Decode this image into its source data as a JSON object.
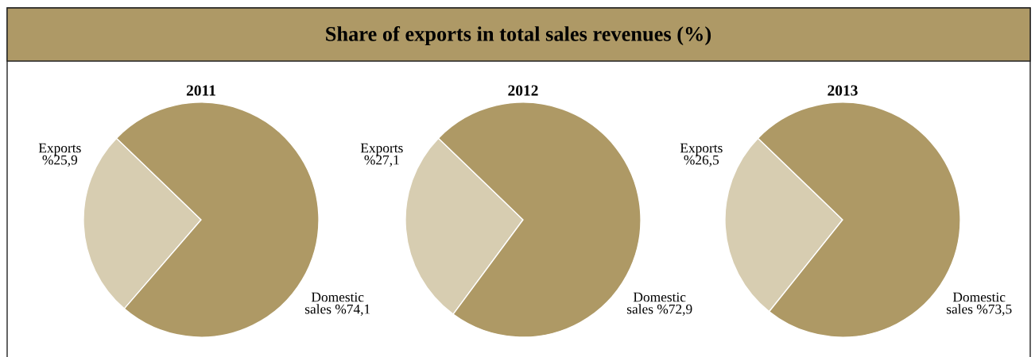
{
  "chart_data": [
    {
      "type": "other",
      "title": "Share of exports in total sales revenues (%)"
    },
    {
      "type": "pie",
      "title": "2011",
      "categories": [
        "Exports",
        "Domestic sales"
      ],
      "values": [
        25.9,
        74.1
      ],
      "value_labels": [
        "%25,9",
        "%74,1"
      ],
      "colors": [
        "#d7cdb1",
        "#ae9965"
      ]
    },
    {
      "type": "pie",
      "title": "2012",
      "categories": [
        "Exports",
        "Domestic sales"
      ],
      "values": [
        27.1,
        72.9
      ],
      "value_labels": [
        "%27,1",
        "%72,9"
      ],
      "colors": [
        "#d7cdb1",
        "#ae9965"
      ]
    },
    {
      "type": "pie",
      "title": "2013",
      "categories": [
        "Exports",
        "Domestic sales"
      ],
      "values": [
        26.5,
        73.5
      ],
      "value_labels": [
        "%26,5",
        "%73,5"
      ],
      "colors": [
        "#d7cdb1",
        "#ae9965"
      ]
    }
  ]
}
